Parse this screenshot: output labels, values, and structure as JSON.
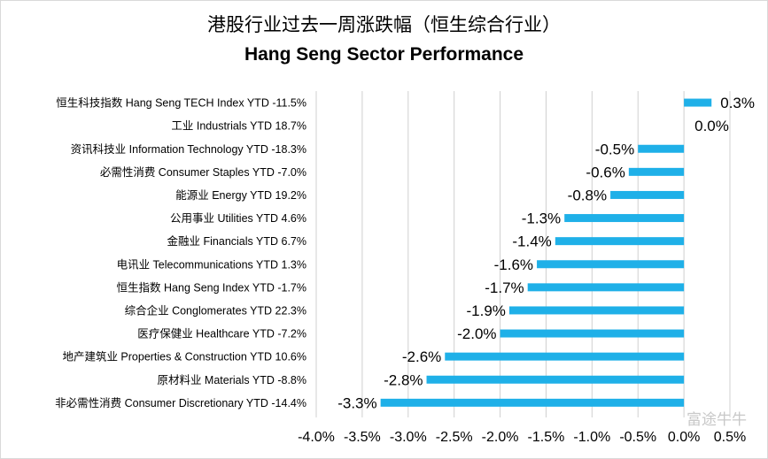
{
  "title_cn": "港股行业过去一周涨跌幅（恒生综合行业）",
  "title_en": "Hang Seng Sector Performance",
  "watermark": "富途牛牛",
  "colors": {
    "bar": "#1fb0e8",
    "grid": "#d0d0d0",
    "text": "#000000"
  },
  "chart_data": {
    "type": "bar",
    "orientation": "horizontal",
    "title": "港股行业过去一周涨跌幅（恒生综合行业） Hang Seng Sector Performance",
    "categories": [
      "恒生科技指数 Hang Seng TECH Index YTD -11.5%",
      "工业 Industrials YTD 18.7%",
      "资讯科技业 Information Technology YTD -18.3%",
      "必需性消费 Consumer Staples YTD -7.0%",
      "能源业 Energy YTD 19.2%",
      "公用事业 Utilities YTD 4.6%",
      "金融业 Financials YTD 6.7%",
      "电讯业 Telecommunications YTD 1.3%",
      "恒生指数 Hang Seng Index YTD -1.7%",
      "综合企业 Conglomerates YTD 22.3%",
      "医疗保健业 Healthcare YTD -7.2%",
      "地产建筑业 Properties & Construction YTD 10.6%",
      "原材料业 Materials YTD -8.8%",
      "非必需性消费 Consumer Discretionary YTD -14.4%"
    ],
    "values": [
      0.3,
      0.0,
      -0.5,
      -0.6,
      -0.8,
      -1.3,
      -1.4,
      -1.6,
      -1.7,
      -1.9,
      -2.0,
      -2.6,
      -2.8,
      -3.3
    ],
    "data_labels": [
      "0.3%",
      "0.0%",
      "-0.5%",
      "-0.6%",
      "-0.8%",
      "-1.3%",
      "-1.4%",
      "-1.6%",
      "-1.7%",
      "-1.9%",
      "-2.0%",
      "-2.6%",
      "-2.8%",
      "-3.3%"
    ],
    "xlim": [
      -4.0,
      0.5
    ],
    "x_ticks": [
      -4.0,
      -3.5,
      -3.0,
      -2.5,
      -2.0,
      -1.5,
      -1.0,
      -0.5,
      0.0,
      0.5
    ],
    "x_tick_labels": [
      "-4.0%",
      "-3.5%",
      "-3.0%",
      "-2.5%",
      "-2.0%",
      "-1.5%",
      "-1.0%",
      "-0.5%",
      "0.0%",
      "0.5%"
    ],
    "xlabel": "",
    "ylabel": "",
    "grid": "vertical",
    "legend": "none"
  }
}
